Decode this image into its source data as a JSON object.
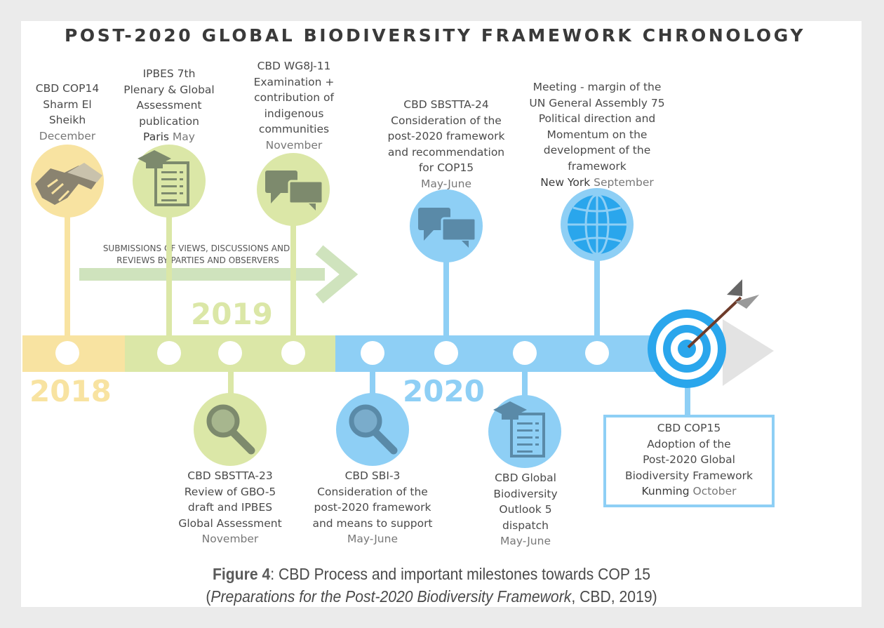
{
  "title": "POST-2020 GLOBAL BIODIVERSITY FRAMEWORK CHRONOLOGY",
  "years": [
    "2018",
    "2019",
    "2020"
  ],
  "arrow_text": [
    "SUBMISSIONS OF VIEWS, DISCUSSIONS AND",
    "REVIEWS BY PARTIES AND OBSERVERS"
  ],
  "colors": {
    "yellow": "#f8e3a1",
    "green": "#dbe7a7",
    "blue": "#8ecff5",
    "blue_dark": "#2aa6ec",
    "arrow_green": "#cfe3bd"
  },
  "milestones": {
    "cop14": {
      "lines": [
        "CBD COP14",
        "Sharm El",
        "Sheikh"
      ],
      "when": "December",
      "icon": "handshake-icon"
    },
    "ipbes": {
      "lines": [
        "IPBES 7th",
        "Plenary & Global",
        "Assessment",
        "publication"
      ],
      "place": "Paris",
      "when": "May",
      "icon": "report-graduation-icon"
    },
    "wg8j": {
      "lines": [
        "CBD WG8J-11",
        "Examination +",
        "contribution of",
        "indigenous",
        "communities"
      ],
      "when": "November",
      "icon": "speech-bubbles-icon"
    },
    "sbstta24": {
      "lines": [
        "CBD SBSTTA-24",
        "Consideration of the",
        "post-2020 framework",
        "and recommendation",
        "for COP15"
      ],
      "when": "May-June",
      "icon": "speech-bubbles-icon"
    },
    "unga": {
      "lines": [
        "Meeting - margin of the",
        "UN General Assembly 75",
        "Political direction and",
        "Momentum on the",
        "development of the",
        "framework"
      ],
      "place": "New York",
      "when": "September",
      "icon": "globe-icon"
    },
    "sbstta23": {
      "lines": [
        "CBD SBSTTA-23",
        "Review of GBO-5",
        "draft and IPBES",
        "Global Assessment"
      ],
      "when": "November",
      "icon": "magnifier-icon"
    },
    "sbi3": {
      "lines": [
        "CBD SBI-3",
        "Consideration of the",
        "post-2020 framework",
        "and means to support"
      ],
      "when": "May-June",
      "icon": "magnifier-icon"
    },
    "gbo5": {
      "lines": [
        "CBD Global",
        "Biodiversity",
        "Outlook 5",
        "dispatch"
      ],
      "when": "May-June",
      "icon": "report-graduation-icon"
    },
    "cop15": {
      "lines": [
        "CBD COP15",
        "Adoption of the",
        "Post-2020 Global",
        "Biodiversity Framework"
      ],
      "place": "Kunming",
      "when": "October",
      "icon": "target-arrow-icon"
    }
  },
  "caption": {
    "figure": "Figure 4",
    "text": ": CBD Process and important milestones towards COP 15",
    "source_open": "(",
    "source_title": "Preparations for the Post-2020 Biodiversity Framework",
    "source_rest": ", CBD, 2019)"
  }
}
